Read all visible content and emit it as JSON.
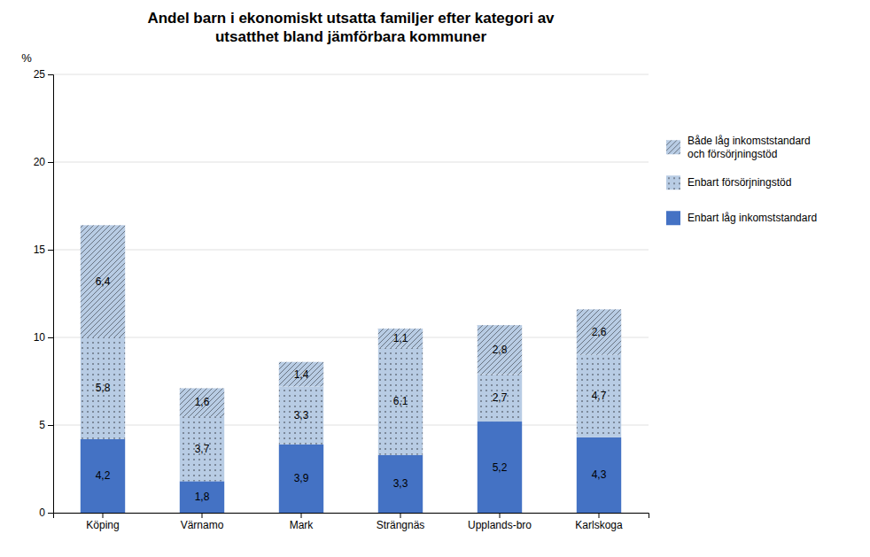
{
  "chart_data": {
    "type": "bar",
    "stacked": true,
    "title": "Andel barn i ekonomiskt utsatta familjer efter kategori av\nutsatthet bland jämförbara kommuner",
    "ylabel": "%",
    "categories": [
      "Köping",
      "Värnamo",
      "Mark",
      "Strängnäs",
      "Upplands-bro",
      "Karlskoga"
    ],
    "series": [
      {
        "name": "Enbart låg inkomststandard",
        "color": "#4472C4",
        "values": [
          4.2,
          1.8,
          3.9,
          3.3,
          5.2,
          4.3
        ],
        "value_labels": [
          "4,2",
          "1,8",
          "3,9",
          "3,3",
          "5,2",
          "4,3"
        ]
      },
      {
        "name": "Enbart försörjningstöd",
        "color": "#B8CCE4",
        "values": [
          5.8,
          3.7,
          3.3,
          6.1,
          2.7,
          4.7
        ],
        "value_labels": [
          "5,8",
          "3,7",
          "3,3",
          "6,1",
          "2,7",
          "4,7"
        ]
      },
      {
        "name": "Både låg inkomststandard\noch försörjningstöd",
        "color": "#B8CCE4",
        "values": [
          6.4,
          1.6,
          1.4,
          1.1,
          2.8,
          2.6
        ],
        "value_labels": [
          "6,4",
          "1,6",
          "1,4",
          "1,1",
          "2,8",
          "2,6"
        ]
      }
    ],
    "ylim": [
      0,
      25
    ],
    "yticks": [
      0,
      5,
      10,
      15,
      20,
      25
    ],
    "grid": true,
    "legend": "right",
    "data_labels": true
  }
}
